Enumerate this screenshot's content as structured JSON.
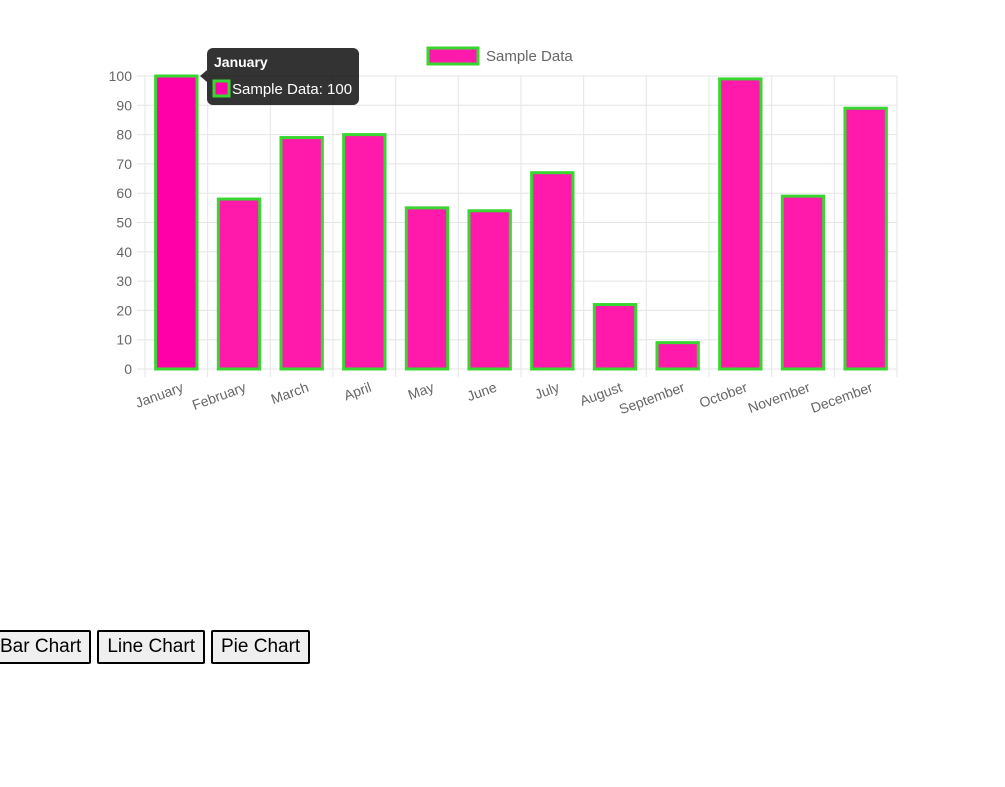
{
  "chart_data": {
    "type": "bar",
    "categories": [
      "January",
      "February",
      "March",
      "April",
      "May",
      "June",
      "July",
      "August",
      "September",
      "October",
      "November",
      "December"
    ],
    "series": [
      {
        "name": "Sample Data",
        "values": [
          100,
          58,
          79,
          80,
          55,
          54,
          67,
          22,
          9,
          99,
          59,
          89
        ]
      }
    ],
    "ylim": [
      0,
      100
    ],
    "yticks": [
      0,
      10,
      20,
      30,
      40,
      50,
      60,
      70,
      80,
      90,
      100
    ],
    "grid": true,
    "legend": "top-center",
    "colors": {
      "bar_fill": "#ff1aab",
      "bar_fill_hover": "#ff00a8",
      "bar_border": "#39d631",
      "grid": "#e5e5e5",
      "tick_text": "#666666"
    },
    "tooltip": {
      "title": "January",
      "body": "Sample Data: 100",
      "category_index": 0
    }
  },
  "buttons": {
    "bar": "Bar Chart",
    "line": "Line Chart",
    "pie": "Pie Chart"
  }
}
